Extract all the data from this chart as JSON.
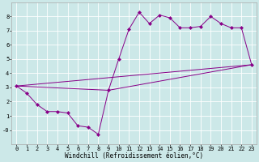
{
  "xlabel": "Windchill (Refroidissement éolien,°C)",
  "bg_color": "#cce8e8",
  "line_color": "#880088",
  "grid_color": "#ffffff",
  "xlim": [
    -0.5,
    23.5
  ],
  "ylim": [
    -1.0,
    9.0
  ],
  "yticks": [
    0,
    1,
    2,
    3,
    4,
    5,
    6,
    7,
    8
  ],
  "ytick_labels": [
    "-0",
    "1",
    "2",
    "3",
    "4",
    "5",
    "6",
    "7",
    "8"
  ],
  "xticks": [
    0,
    1,
    2,
    3,
    4,
    5,
    6,
    7,
    8,
    9,
    10,
    11,
    12,
    13,
    14,
    15,
    16,
    17,
    18,
    19,
    20,
    21,
    22,
    23
  ],
  "line1_x": [
    0,
    1,
    2,
    3,
    4,
    5,
    6,
    7,
    8,
    9,
    10,
    11,
    12,
    13,
    14,
    15,
    16,
    17,
    18,
    19,
    20,
    21,
    22,
    23
  ],
  "line1_y": [
    3.1,
    2.6,
    1.8,
    1.3,
    1.3,
    1.2,
    0.3,
    0.2,
    -0.3,
    2.8,
    5.0,
    7.1,
    8.3,
    7.5,
    8.1,
    7.9,
    7.2,
    7.2,
    7.3,
    8.0,
    7.5,
    7.2,
    7.2,
    4.6
  ],
  "line2_x": [
    0,
    23
  ],
  "line2_y": [
    3.1,
    4.6
  ],
  "line3_x": [
    0,
    9,
    23
  ],
  "line3_y": [
    3.1,
    2.8,
    4.6
  ],
  "marker_style": "D",
  "marker_size": 2.0,
  "linewidth": 0.7,
  "tick_fs": 5.0,
  "xlabel_fs": 5.5
}
